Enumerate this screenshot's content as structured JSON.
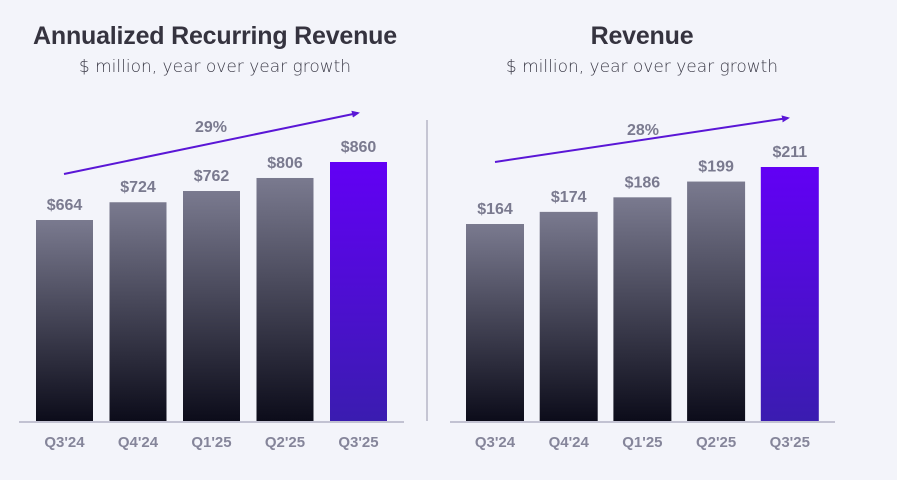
{
  "colors": {
    "background": "#f3f4fa",
    "bar_top": "#7a7a8f",
    "bar_bottom": "#0c0c1a",
    "highlight_top": "#6200f5",
    "highlight_bottom": "#3a1cb0",
    "arrow": "#5a16d6",
    "axis": "#c2c2d2",
    "divider": "#c5c5d3"
  },
  "chart_data": [
    {
      "type": "bar",
      "title": "Annualized Recurring Revenue",
      "subtitle": "$ million, year over year growth",
      "categories": [
        "Q3'24",
        "Q4'24",
        "Q1'25",
        "Q2'25",
        "Q3'25"
      ],
      "values": [
        664,
        724,
        762,
        806,
        860
      ],
      "value_labels": [
        "$664",
        "$724",
        "$762",
        "$806",
        "$860"
      ],
      "highlight_index": 4,
      "growth_annotation": "29%",
      "xlabel": "",
      "ylabel": "",
      "grid": false
    },
    {
      "type": "bar",
      "title": "Revenue",
      "subtitle": "$ million, year over year growth",
      "categories": [
        "Q3'24",
        "Q4'24",
        "Q1'25",
        "Q2'25",
        "Q3'25"
      ],
      "values": [
        164,
        174,
        186,
        199,
        211
      ],
      "value_labels": [
        "$164",
        "$174",
        "$186",
        "$199",
        "$211"
      ],
      "highlight_index": 4,
      "growth_annotation": "28%",
      "xlabel": "",
      "ylabel": "",
      "grid": false
    }
  ]
}
